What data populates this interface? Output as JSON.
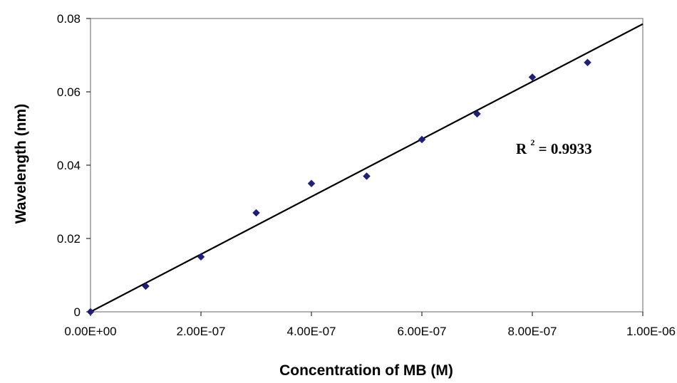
{
  "chart_data": {
    "type": "scatter",
    "title": "",
    "xlabel": "Concentration of MB (M)",
    "ylabel": "Wavelength (nm)",
    "xlim": [
      0,
      1e-06
    ],
    "ylim": [
      0,
      0.08
    ],
    "x_ticks": [
      0,
      2e-07,
      4e-07,
      6e-07,
      8e-07,
      1e-06
    ],
    "x_tick_labels": [
      "0.00E+00",
      "2.00E-07",
      "4.00E-07",
      "6.00E-07",
      "8.00E-07",
      "1.00E-06"
    ],
    "y_ticks": [
      0,
      0.02,
      0.04,
      0.06,
      0.08
    ],
    "y_tick_labels": [
      "0",
      "0.02",
      "0.04",
      "0.06",
      "0.08"
    ],
    "grid": false,
    "legend": "none",
    "series": [
      {
        "marker": "diamond",
        "color": "#1f1f7a",
        "x": [
          0,
          1e-07,
          2e-07,
          3e-07,
          4e-07,
          5e-07,
          6e-07,
          7e-07,
          8e-07,
          9e-07
        ],
        "y": [
          0,
          0.007,
          0.015,
          0.027,
          0.035,
          0.037,
          0.047,
          0.054,
          0.064,
          0.068
        ]
      }
    ],
    "trendline": {
      "type": "linear",
      "color": "#000000",
      "x": [
        0,
        1e-06
      ],
      "y": [
        0,
        0.0785
      ]
    },
    "annotations": {
      "r_squared_prefix": "R",
      "r_squared_exponent": "2",
      "r_squared_value": " = 0.9933"
    }
  }
}
